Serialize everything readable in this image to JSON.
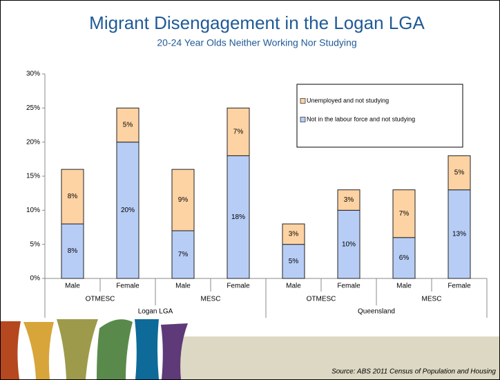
{
  "chart_data": {
    "type": "stacked-bar",
    "title": "Migrant Disengagement in the Logan LGA",
    "subtitle": "20-24 Year Olds Neither Working Nor Studying",
    "categories": [
      "Male",
      "Female",
      "Male",
      "Female",
      "Male",
      "Female",
      "Male",
      "Female"
    ],
    "groups": [
      "OTMESC",
      "MESC",
      "OTMESC",
      "MESC"
    ],
    "supergroups": [
      "Logan LGA",
      "Queensland"
    ],
    "series": [
      {
        "name": "Not in the labour force and not studying",
        "color": "#b7cdf5",
        "values": [
          8,
          20,
          7,
          18,
          5,
          10,
          6,
          13
        ],
        "value_labels": [
          "8%",
          "20%",
          "7%",
          "18%",
          "5%",
          "10%",
          "6%",
          "13%"
        ]
      },
      {
        "name": "Unemployed and not studying",
        "color": "#fdd3a4",
        "values": [
          8,
          5,
          9,
          7,
          3,
          3,
          7,
          5
        ],
        "value_labels": [
          "8%",
          "5%",
          "9%",
          "7%",
          "3%",
          "3%",
          "7%",
          "5%"
        ]
      }
    ],
    "ylim": [
      0,
      30
    ],
    "yticks": [
      {
        "value": 0,
        "label": "0%"
      },
      {
        "value": 5,
        "label": "5%"
      },
      {
        "value": 10,
        "label": "10%"
      },
      {
        "value": 15,
        "label": "15%"
      },
      {
        "value": 20,
        "label": "20%"
      },
      {
        "value": 25,
        "label": "25%"
      },
      {
        "value": 30,
        "label": "30%"
      }
    ],
    "legend": "top-right",
    "source": "Source: ABS 2011 Census of Population and Housing"
  }
}
